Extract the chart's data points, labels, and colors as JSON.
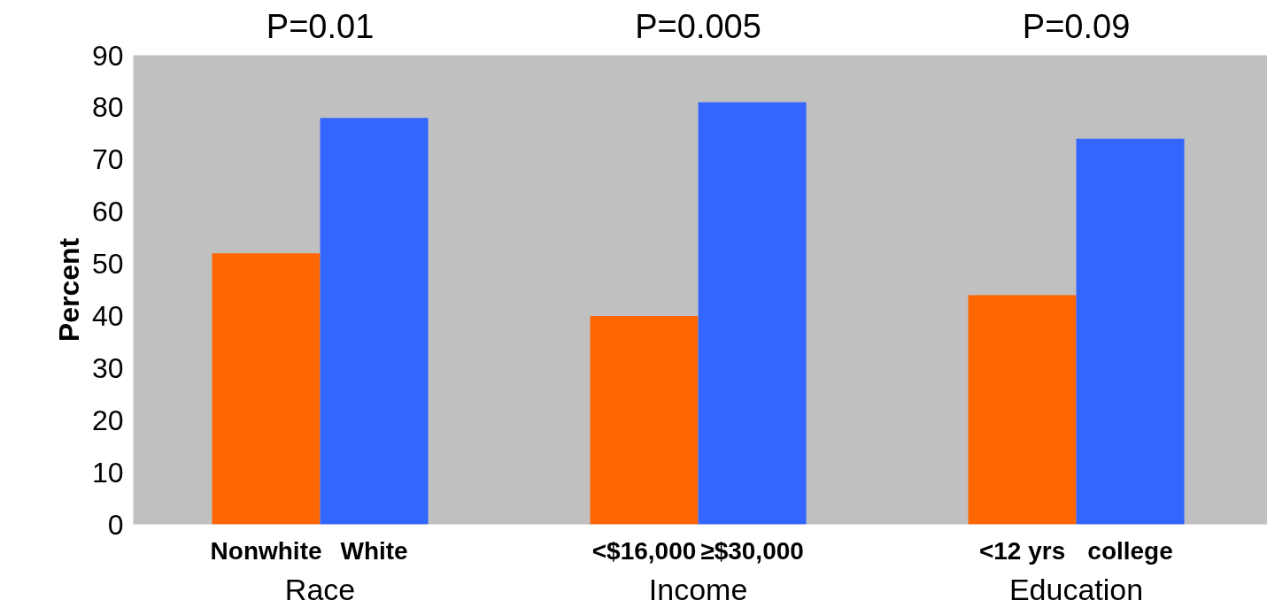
{
  "chart_data": {
    "type": "bar",
    "categories": [
      "Nonwhite",
      "White",
      "<$16,000",
      "≥$30,000",
      "<12 yrs",
      "college"
    ],
    "values": [
      52,
      78,
      40,
      81,
      44,
      74
    ],
    "colors": [
      "#ff6600",
      "#3366ff",
      "#ff6600",
      "#3366ff",
      "#ff6600",
      "#3366ff"
    ],
    "ylabel": "Percent",
    "ylim": [
      0,
      90
    ],
    "yticks": [
      0,
      10,
      20,
      30,
      40,
      50,
      60,
      70,
      80,
      90
    ],
    "grid": false,
    "annotations": [
      "P=0.01",
      "P=0.005",
      "P=0.09",
      "Race",
      "Income",
      "Education"
    ]
  }
}
